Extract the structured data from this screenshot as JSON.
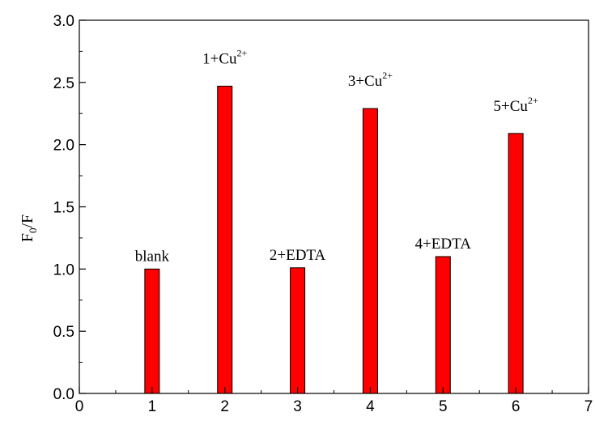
{
  "chart_data": {
    "type": "bar",
    "x": [
      1,
      2,
      3,
      4,
      5,
      6
    ],
    "values": [
      1.0,
      2.47,
      1.01,
      2.29,
      1.1,
      2.09
    ],
    "bar_color": "#ff0000",
    "bar_edge_color": "#000000",
    "annotations": [
      {
        "x": 1,
        "text": "blank",
        "sup": ""
      },
      {
        "x": 2,
        "text": "1+Cu",
        "sup": "2+"
      },
      {
        "x": 3,
        "text": "2+EDTA",
        "sup": ""
      },
      {
        "x": 4,
        "text": "3+Cu",
        "sup": "2+"
      },
      {
        "x": 5,
        "text": "4+EDTA",
        "sup": ""
      },
      {
        "x": 6,
        "text": "5+Cu",
        "sup": "2+"
      }
    ],
    "title": "",
    "xlabel": "",
    "ylabel_main": "F",
    "ylabel_sub": "0",
    "ylabel_tail": "/F",
    "xlim": [
      0,
      7
    ],
    "ylim": [
      0,
      3.0
    ],
    "xticks": [
      "0",
      "1",
      "2",
      "3",
      "4",
      "5",
      "6",
      "7"
    ],
    "yticks": [
      "0.0",
      "0.5",
      "1.0",
      "1.5",
      "2.0",
      "2.5",
      "3.0"
    ],
    "grid": false
  }
}
